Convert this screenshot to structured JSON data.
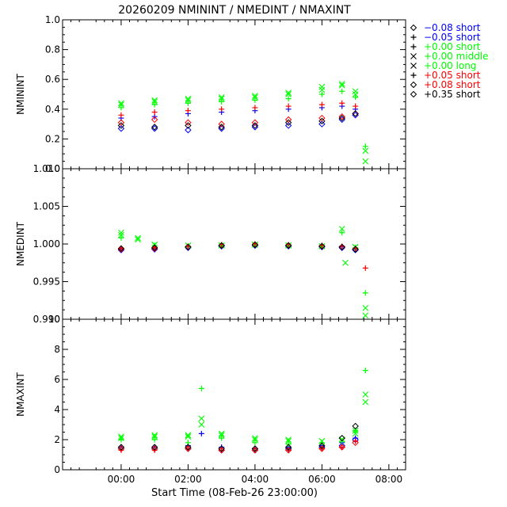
{
  "title": "20260209  NMININT  /  NMEDINT  /  NMAXINT",
  "xlabel": "Start Time (08-Feb-26 23:00:00)",
  "legend": [
    {
      "marker": "diamond",
      "label": "−0.08 short",
      "color": "#0000ff"
    },
    {
      "marker": "plus",
      "label": "−0.05 short",
      "color": "#0000ff"
    },
    {
      "marker": "plus",
      "label": "+0.00 short",
      "color": "#00ff00"
    },
    {
      "marker": "cross",
      "label": "+0.00 middle",
      "color": "#00ff00"
    },
    {
      "marker": "cross",
      "label": "+0.00 long",
      "color": "#00ff00"
    },
    {
      "marker": "plus",
      "label": "+0.05 short",
      "color": "#ff0000"
    },
    {
      "marker": "diamond",
      "label": "+0.08 short",
      "color": "#ff0000"
    },
    {
      "marker": "diamond",
      "label": "+0.35 short",
      "color": "#000000"
    }
  ],
  "chart_data": [
    {
      "type": "scatter",
      "ylabel": "NMININT",
      "xlim": [
        -0.75,
        9.5
      ],
      "ylim": [
        0.0,
        1.0
      ],
      "y_ticks": [
        "0.0",
        "0.2",
        "0.4",
        "0.6",
        "0.8",
        "1.0"
      ],
      "y_tick_values": [
        0.0,
        0.2,
        0.4,
        0.6,
        0.8,
        1.0
      ],
      "x_ticks": [
        "00:00",
        "02:00",
        "04:00",
        "06:00",
        "08:00"
      ],
      "x_tick_values": [
        1,
        3,
        5,
        7,
        9
      ],
      "x_tick_labels_shown": false,
      "series": [
        {
          "name": "−0.08 short",
          "marker": "diamond",
          "color": "#0000ff",
          "x": [
            1.0,
            2.0,
            3.0,
            4.0,
            5.0,
            6.0,
            7.0,
            7.6,
            8.0
          ],
          "y": [
            0.27,
            0.27,
            0.26,
            0.27,
            0.28,
            0.29,
            0.3,
            0.33,
            0.36
          ]
        },
        {
          "name": "−0.05 short",
          "marker": "plus",
          "color": "#0000ff",
          "x": [
            1.0,
            2.0,
            3.0,
            4.0,
            5.0,
            6.0,
            7.0,
            7.6,
            8.0
          ],
          "y": [
            0.34,
            0.35,
            0.37,
            0.38,
            0.39,
            0.4,
            0.41,
            0.42,
            0.4
          ]
        },
        {
          "name": "+0.00 short",
          "marker": "plus",
          "color": "#00ff00",
          "x": [
            1.0,
            2.0,
            3.0,
            4.0,
            5.0,
            6.0,
            7.0,
            7.6,
            8.0,
            8.3
          ],
          "y": [
            0.41,
            0.43,
            0.44,
            0.45,
            0.46,
            0.47,
            0.5,
            0.52,
            0.48,
            0.15
          ]
        },
        {
          "name": "+0.00 middle",
          "marker": "cross",
          "color": "#00ff00",
          "x": [
            1.0,
            2.0,
            3.0,
            4.0,
            5.0,
            6.0,
            7.0,
            7.6,
            8.0,
            8.3
          ],
          "y": [
            0.43,
            0.45,
            0.46,
            0.47,
            0.48,
            0.5,
            0.53,
            0.56,
            0.5,
            0.12
          ]
        },
        {
          "name": "+0.00 long",
          "marker": "cross",
          "color": "#00ff00",
          "x": [
            1.0,
            2.0,
            3.0,
            4.0,
            5.0,
            6.0,
            7.0,
            7.6,
            8.0,
            8.3
          ],
          "y": [
            0.44,
            0.46,
            0.47,
            0.48,
            0.49,
            0.51,
            0.55,
            0.57,
            0.52,
            0.05
          ]
        },
        {
          "name": "+0.05 short",
          "marker": "plus",
          "color": "#ff0000",
          "x": [
            1.0,
            2.0,
            3.0,
            4.0,
            5.0,
            6.0,
            7.0,
            7.6,
            8.0
          ],
          "y": [
            0.36,
            0.38,
            0.39,
            0.4,
            0.41,
            0.42,
            0.43,
            0.44,
            0.42
          ]
        },
        {
          "name": "+0.08 short",
          "marker": "diamond",
          "color": "#ff0000",
          "x": [
            1.0,
            2.0,
            3.0,
            4.0,
            5.0,
            6.0,
            7.0,
            7.6,
            8.0
          ],
          "y": [
            0.31,
            0.33,
            0.31,
            0.3,
            0.31,
            0.33,
            0.34,
            0.35,
            0.37
          ]
        },
        {
          "name": "+0.35 short",
          "marker": "diamond",
          "color": "#000000",
          "x": [
            1.0,
            2.0,
            3.0,
            4.0,
            5.0,
            6.0,
            7.0,
            7.6,
            8.0
          ],
          "y": [
            0.29,
            0.28,
            0.29,
            0.28,
            0.29,
            0.31,
            0.32,
            0.34,
            0.37
          ]
        }
      ]
    },
    {
      "type": "scatter",
      "ylabel": "NMEDINT",
      "xlim": [
        -0.75,
        9.5
      ],
      "ylim": [
        0.99,
        1.01
      ],
      "y_ticks": [
        "0.990",
        "0.995",
        "1.000",
        "1.005",
        "1.010"
      ],
      "y_tick_values": [
        0.99,
        0.995,
        1.0,
        1.005,
        1.01
      ],
      "x_ticks": [
        "00:00",
        "02:00",
        "04:00",
        "06:00",
        "08:00"
      ],
      "x_tick_values": [
        1,
        3,
        5,
        7,
        9
      ],
      "x_tick_labels_shown": false,
      "series": [
        {
          "name": "−0.08 short",
          "marker": "diamond",
          "color": "#0000ff",
          "x": [
            1.0,
            2.0,
            3.0,
            4.0,
            5.0,
            6.0,
            7.0,
            7.6,
            8.0
          ],
          "y": [
            0.9992,
            0.9993,
            0.9995,
            0.9997,
            0.9998,
            0.9997,
            0.9996,
            0.9995,
            0.9992
          ]
        },
        {
          "name": "−0.05 short",
          "marker": "plus",
          "color": "#0000ff",
          "x": [
            1.0,
            2.0,
            3.0,
            4.0,
            5.0,
            6.0,
            7.0,
            7.6,
            8.0
          ],
          "y": [
            0.9993,
            0.9994,
            0.9996,
            0.9998,
            0.9999,
            0.9998,
            0.9997,
            0.9996,
            0.9993
          ]
        },
        {
          "name": "+0.00 short",
          "marker": "plus",
          "color": "#00ff00",
          "x": [
            1.0,
            2.0,
            3.0,
            4.0,
            5.0,
            6.0,
            7.0,
            7.6,
            8.0,
            8.3
          ],
          "y": [
            1.0008,
            0.9998,
            0.9997,
            0.9998,
            0.9999,
            0.9998,
            0.9997,
            1.0015,
            0.9995,
            0.9935
          ]
        },
        {
          "name": "+0.00 middle",
          "marker": "cross",
          "color": "#00ff00",
          "x": [
            1.0,
            1.5,
            2.0,
            3.0,
            4.0,
            5.0,
            6.0,
            7.0,
            7.6,
            8.0,
            8.3
          ],
          "y": [
            1.0015,
            1.0008,
            0.9999,
            0.9998,
            0.9998,
            0.9999,
            0.9998,
            0.9997,
            1.002,
            0.9996,
            0.9915
          ]
        },
        {
          "name": "+0.00 long",
          "marker": "cross",
          "color": "#00ff00",
          "x": [
            1.0,
            1.5,
            2.0,
            3.0,
            4.0,
            5.0,
            6.0,
            7.0,
            7.7,
            8.0,
            8.3
          ],
          "y": [
            1.0012,
            1.0006,
            0.9999,
            0.9998,
            0.9998,
            0.9999,
            0.9998,
            0.9997,
            0.9975,
            0.9996,
            0.9905
          ]
        },
        {
          "name": "+0.05 short",
          "marker": "plus",
          "color": "#ff0000",
          "x": [
            1.0,
            2.0,
            3.0,
            4.0,
            5.0,
            6.0,
            7.0,
            7.6,
            8.0,
            8.3
          ],
          "y": [
            0.9994,
            0.9995,
            0.9997,
            0.9999,
            1.0,
            0.9999,
            0.9998,
            0.9997,
            0.9994,
            0.9968
          ]
        },
        {
          "name": "+0.08 short",
          "marker": "diamond",
          "color": "#ff0000",
          "x": [
            1.0,
            2.0,
            3.0,
            4.0,
            5.0,
            6.0,
            7.0,
            7.6,
            8.0
          ],
          "y": [
            0.9993,
            0.9994,
            0.9996,
            0.9998,
            0.9999,
            0.9998,
            0.9997,
            0.9996,
            0.9993
          ]
        },
        {
          "name": "+0.35 short",
          "marker": "diamond",
          "color": "#000000",
          "x": [
            1.0,
            2.0,
            3.0,
            4.0,
            5.0,
            6.0,
            7.0,
            7.6,
            8.0
          ],
          "y": [
            0.9994,
            0.9995,
            0.9996,
            0.9998,
            0.9999,
            0.9998,
            0.9997,
            0.9996,
            0.9993
          ]
        }
      ]
    },
    {
      "type": "scatter",
      "ylabel": "NMAXINT",
      "xlim": [
        -0.75,
        9.5
      ],
      "ylim": [
        0,
        10
      ],
      "y_ticks": [
        "0",
        "2",
        "4",
        "6",
        "8",
        "10"
      ],
      "y_tick_values": [
        0,
        2,
        4,
        6,
        8,
        10
      ],
      "x_ticks": [
        "00:00",
        "02:00",
        "04:00",
        "06:00",
        "08:00"
      ],
      "x_tick_values": [
        1,
        3,
        5,
        7,
        9
      ],
      "x_tick_labels_shown": true,
      "series": [
        {
          "name": "−0.08 short",
          "marker": "diamond",
          "color": "#0000ff",
          "x": [
            1.0,
            2.0,
            3.0,
            4.0,
            5.0,
            6.0,
            7.0,
            7.6,
            8.0
          ],
          "y": [
            1.4,
            1.4,
            1.4,
            1.3,
            1.3,
            1.4,
            1.5,
            1.6,
            2.0
          ]
        },
        {
          "name": "−0.05 short",
          "marker": "plus",
          "color": "#0000ff",
          "x": [
            1.0,
            2.0,
            3.0,
            3.4,
            4.0,
            5.0,
            6.0,
            7.0,
            7.6,
            8.0
          ],
          "y": [
            1.5,
            1.5,
            1.6,
            2.4,
            1.5,
            1.4,
            1.5,
            1.6,
            1.8,
            2.1
          ]
        },
        {
          "name": "+0.00 short",
          "marker": "plus",
          "color": "#00ff00",
          "x": [
            1.0,
            2.0,
            3.0,
            3.4,
            4.0,
            5.0,
            6.0,
            7.0,
            7.6,
            8.0,
            8.3
          ],
          "y": [
            2.0,
            2.0,
            1.8,
            5.4,
            2.1,
            1.8,
            1.7,
            1.8,
            1.9,
            2.6,
            6.6
          ]
        },
        {
          "name": "+0.00 middle",
          "marker": "cross",
          "color": "#00ff00",
          "x": [
            1.0,
            2.0,
            3.0,
            3.4,
            4.0,
            5.0,
            6.0,
            7.0,
            7.6,
            8.0,
            8.3
          ],
          "y": [
            2.1,
            2.2,
            2.3,
            3.4,
            2.3,
            2.0,
            1.9,
            1.9,
            2.0,
            2.6,
            5.0
          ]
        },
        {
          "name": "+0.00 long",
          "marker": "cross",
          "color": "#00ff00",
          "x": [
            1.0,
            2.0,
            3.0,
            3.4,
            4.0,
            5.0,
            6.0,
            7.0,
            7.6,
            8.0,
            8.3
          ],
          "y": [
            2.2,
            2.3,
            2.2,
            3.0,
            2.4,
            2.1,
            2.0,
            1.9,
            2.0,
            2.4,
            4.5
          ]
        },
        {
          "name": "+0.05 short",
          "marker": "plus",
          "color": "#ff0000",
          "x": [
            1.0,
            2.0,
            3.0,
            4.0,
            5.0,
            6.0,
            7.0,
            7.6,
            8.0
          ],
          "y": [
            1.3,
            1.3,
            1.4,
            1.3,
            1.3,
            1.3,
            1.4,
            1.5,
            1.9
          ]
        },
        {
          "name": "+0.08 short",
          "marker": "diamond",
          "color": "#ff0000",
          "x": [
            1.0,
            2.0,
            3.0,
            4.0,
            5.0,
            6.0,
            7.0,
            7.6,
            8.0
          ],
          "y": [
            1.4,
            1.4,
            1.4,
            1.3,
            1.3,
            1.3,
            1.4,
            1.5,
            1.8
          ]
        },
        {
          "name": "+0.35 short",
          "marker": "diamond",
          "color": "#000000",
          "x": [
            1.0,
            2.0,
            3.0,
            4.0,
            5.0,
            6.0,
            7.0,
            7.6,
            8.0
          ],
          "y": [
            1.5,
            1.5,
            1.5,
            1.4,
            1.4,
            1.5,
            1.6,
            2.1,
            2.9
          ]
        }
      ]
    }
  ]
}
